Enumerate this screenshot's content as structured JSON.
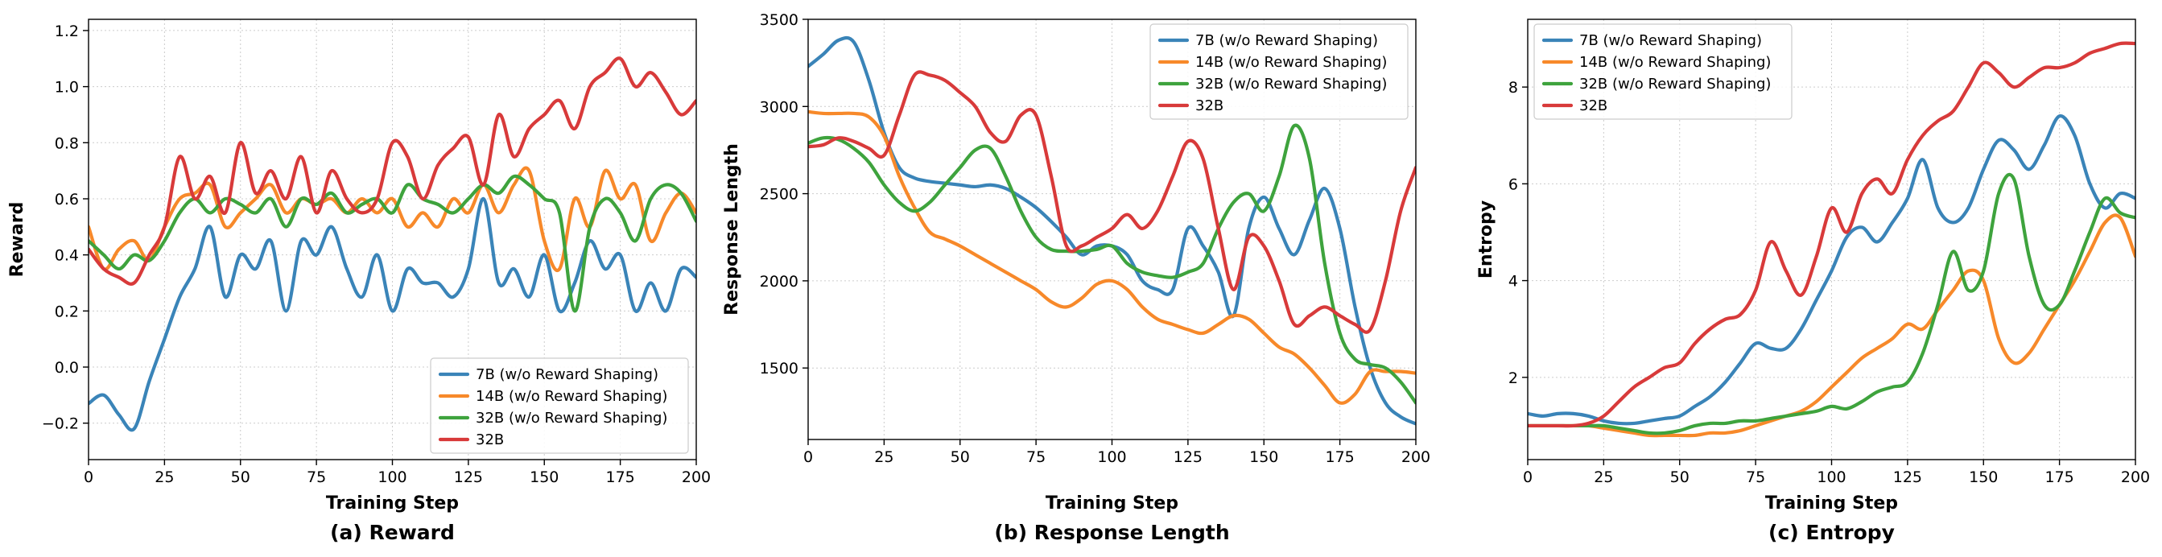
{
  "figure": {
    "background": "#ffffff"
  },
  "legend": {
    "entries": [
      {
        "label": "7B (w/o Reward Shaping)",
        "color": "#3a84b8"
      },
      {
        "label": "14B (w/o Reward Shaping)",
        "color": "#f7892a"
      },
      {
        "label": "32B (w/o Reward Shaping)",
        "color": "#3ea33d"
      },
      {
        "label": "32B",
        "color": "#d83a3a"
      }
    ]
  },
  "chart_data": [
    {
      "type": "line",
      "caption": "(a) Reward",
      "xlabel": "Training Step",
      "ylabel": "Reward",
      "xlim": [
        0,
        200
      ],
      "ylim": [
        -0.33,
        1.24
      ],
      "xticks": [
        0,
        25,
        50,
        75,
        100,
        125,
        150,
        175,
        200
      ],
      "xtick_labels": [
        "0",
        "25",
        "50",
        "75",
        "100",
        "125",
        "150",
        "175",
        "200"
      ],
      "yticks": [
        -0.2,
        0.0,
        0.2,
        0.4,
        0.6,
        0.8,
        1.0,
        1.2
      ],
      "ytick_labels": [
        "−0.2",
        "0.0",
        "0.2",
        "0.4",
        "0.6",
        "0.8",
        "1.0",
        "1.2"
      ],
      "grid": true,
      "legend_position": "lower-right",
      "x": [
        0,
        5,
        10,
        15,
        20,
        25,
        30,
        35,
        40,
        45,
        50,
        55,
        60,
        65,
        70,
        75,
        80,
        85,
        90,
        95,
        100,
        105,
        110,
        115,
        120,
        125,
        130,
        135,
        140,
        145,
        150,
        155,
        160,
        165,
        170,
        175,
        180,
        185,
        190,
        195,
        200
      ],
      "series": [
        {
          "name": "7B (w/o Reward Shaping)",
          "color": "#3a84b8",
          "values": [
            -0.13,
            -0.1,
            -0.17,
            -0.22,
            -0.05,
            0.1,
            0.25,
            0.35,
            0.5,
            0.25,
            0.4,
            0.35,
            0.45,
            0.2,
            0.45,
            0.4,
            0.5,
            0.35,
            0.25,
            0.4,
            0.2,
            0.35,
            0.3,
            0.3,
            0.25,
            0.35,
            0.6,
            0.3,
            0.35,
            0.25,
            0.4,
            0.2,
            0.3,
            0.45,
            0.35,
            0.4,
            0.2,
            0.3,
            0.2,
            0.35,
            0.32
          ]
        },
        {
          "name": "14B (w/o Reward Shaping)",
          "color": "#f7892a",
          "values": [
            0.5,
            0.35,
            0.42,
            0.45,
            0.38,
            0.5,
            0.6,
            0.62,
            0.65,
            0.5,
            0.55,
            0.6,
            0.65,
            0.55,
            0.6,
            0.58,
            0.6,
            0.55,
            0.6,
            0.55,
            0.6,
            0.5,
            0.55,
            0.5,
            0.6,
            0.55,
            0.65,
            0.55,
            0.65,
            0.7,
            0.45,
            0.35,
            0.6,
            0.5,
            0.7,
            0.6,
            0.65,
            0.45,
            0.55,
            0.62,
            0.55
          ]
        },
        {
          "name": "32B (w/o Reward Shaping)",
          "color": "#3ea33d",
          "values": [
            0.45,
            0.4,
            0.35,
            0.4,
            0.38,
            0.45,
            0.55,
            0.6,
            0.55,
            0.6,
            0.58,
            0.55,
            0.6,
            0.5,
            0.6,
            0.58,
            0.62,
            0.55,
            0.58,
            0.6,
            0.55,
            0.65,
            0.6,
            0.58,
            0.55,
            0.6,
            0.65,
            0.62,
            0.68,
            0.65,
            0.6,
            0.55,
            0.2,
            0.5,
            0.6,
            0.55,
            0.45,
            0.6,
            0.65,
            0.62,
            0.52
          ]
        },
        {
          "name": "32B",
          "color": "#d83a3a",
          "values": [
            0.42,
            0.35,
            0.32,
            0.3,
            0.4,
            0.5,
            0.75,
            0.6,
            0.68,
            0.55,
            0.8,
            0.62,
            0.7,
            0.6,
            0.75,
            0.55,
            0.7,
            0.6,
            0.55,
            0.6,
            0.8,
            0.75,
            0.6,
            0.72,
            0.78,
            0.82,
            0.65,
            0.9,
            0.75,
            0.85,
            0.9,
            0.95,
            0.85,
            1.0,
            1.05,
            1.1,
            1.0,
            1.05,
            0.98,
            0.9,
            0.95
          ]
        }
      ]
    },
    {
      "type": "line",
      "caption": "(b) Response Length",
      "xlabel": "Training Step",
      "ylabel": "Response Length",
      "xlim": [
        0,
        200
      ],
      "ylim": [
        1090,
        3500
      ],
      "xticks": [
        0,
        25,
        50,
        75,
        100,
        125,
        150,
        175,
        200
      ],
      "xtick_labels": [
        "0",
        "25",
        "50",
        "75",
        "100",
        "125",
        "150",
        "175",
        "200"
      ],
      "yticks": [
        1500,
        2000,
        2500,
        3000,
        3500
      ],
      "ytick_labels": [
        "1500",
        "2000",
        "2500",
        "3000",
        "3500"
      ],
      "grid": true,
      "legend_position": "top-right",
      "x": [
        0,
        5,
        10,
        15,
        20,
        25,
        30,
        35,
        40,
        45,
        50,
        55,
        60,
        65,
        70,
        75,
        80,
        85,
        90,
        95,
        100,
        105,
        110,
        115,
        120,
        125,
        130,
        135,
        140,
        145,
        150,
        155,
        160,
        165,
        170,
        175,
        180,
        185,
        190,
        195,
        200
      ],
      "series": [
        {
          "name": "7B (w/o Reward Shaping)",
          "color": "#3a84b8",
          "values": [
            3230,
            3300,
            3380,
            3370,
            3150,
            2850,
            2650,
            2590,
            2570,
            2560,
            2550,
            2540,
            2550,
            2530,
            2480,
            2420,
            2340,
            2250,
            2150,
            2200,
            2200,
            2150,
            2000,
            1950,
            1950,
            2300,
            2200,
            2050,
            1800,
            2300,
            2480,
            2300,
            2150,
            2350,
            2530,
            2300,
            1850,
            1500,
            1300,
            1220,
            1180
          ]
        },
        {
          "name": "14B (w/o Reward Shaping)",
          "color": "#f7892a",
          "values": [
            2970,
            2960,
            2960,
            2960,
            2940,
            2830,
            2600,
            2420,
            2280,
            2240,
            2200,
            2150,
            2100,
            2050,
            2000,
            1950,
            1880,
            1850,
            1900,
            1980,
            2000,
            1950,
            1850,
            1780,
            1750,
            1720,
            1700,
            1750,
            1800,
            1780,
            1700,
            1620,
            1580,
            1500,
            1400,
            1300,
            1350,
            1480,
            1480,
            1480,
            1470
          ]
        },
        {
          "name": "32B (w/o Reward Shaping)",
          "color": "#3ea33d",
          "values": [
            2790,
            2820,
            2810,
            2760,
            2680,
            2550,
            2450,
            2400,
            2450,
            2550,
            2650,
            2750,
            2760,
            2600,
            2400,
            2250,
            2180,
            2170,
            2170,
            2180,
            2200,
            2100,
            2050,
            2030,
            2020,
            2050,
            2100,
            2300,
            2450,
            2500,
            2400,
            2600,
            2890,
            2700,
            2100,
            1700,
            1550,
            1520,
            1500,
            1420,
            1300
          ]
        },
        {
          "name": "32B",
          "color": "#d83a3a",
          "values": [
            2770,
            2780,
            2820,
            2800,
            2760,
            2720,
            2950,
            3180,
            3180,
            3150,
            3080,
            3000,
            2850,
            2800,
            2950,
            2950,
            2600,
            2200,
            2200,
            2250,
            2300,
            2380,
            2300,
            2400,
            2600,
            2800,
            2700,
            2300,
            1950,
            2250,
            2200,
            2000,
            1750,
            1800,
            1850,
            1800,
            1750,
            1720,
            2000,
            2400,
            2650
          ]
        }
      ]
    },
    {
      "type": "line",
      "caption": "(c) Entropy",
      "xlabel": "Training Step",
      "ylabel": "Entropy",
      "xlim": [
        0,
        200
      ],
      "ylim": [
        0.3,
        9.4
      ],
      "xticks": [
        0,
        25,
        50,
        75,
        100,
        125,
        150,
        175,
        200
      ],
      "xtick_labels": [
        "0",
        "25",
        "50",
        "75",
        "100",
        "125",
        "150",
        "175",
        "200"
      ],
      "yticks": [
        2,
        4,
        6,
        8
      ],
      "ytick_labels": [
        "2",
        "4",
        "6",
        "8"
      ],
      "grid": true,
      "legend_position": "top-left",
      "x": [
        0,
        5,
        10,
        15,
        20,
        25,
        30,
        35,
        40,
        45,
        50,
        55,
        60,
        65,
        70,
        75,
        80,
        85,
        90,
        95,
        100,
        105,
        110,
        115,
        120,
        125,
        130,
        135,
        140,
        145,
        150,
        155,
        160,
        165,
        170,
        175,
        180,
        185,
        190,
        195,
        200
      ],
      "series": [
        {
          "name": "7B (w/o Reward Shaping)",
          "color": "#3a84b8",
          "values": [
            1.25,
            1.2,
            1.25,
            1.25,
            1.2,
            1.1,
            1.05,
            1.05,
            1.1,
            1.15,
            1.2,
            1.4,
            1.6,
            1.9,
            2.3,
            2.7,
            2.6,
            2.6,
            3.0,
            3.6,
            4.2,
            4.9,
            5.1,
            4.8,
            5.2,
            5.7,
            6.5,
            5.5,
            5.2,
            5.5,
            6.3,
            6.9,
            6.7,
            6.3,
            6.8,
            7.4,
            7.0,
            6.0,
            5.5,
            5.8,
            5.7
          ]
        },
        {
          "name": "14B (w/o Reward Shaping)",
          "color": "#f7892a",
          "values": [
            1.0,
            1.0,
            1.0,
            1.0,
            1.0,
            0.95,
            0.9,
            0.85,
            0.8,
            0.8,
            0.8,
            0.8,
            0.85,
            0.85,
            0.9,
            1.0,
            1.1,
            1.2,
            1.3,
            1.5,
            1.8,
            2.1,
            2.4,
            2.6,
            2.8,
            3.1,
            3.0,
            3.4,
            3.8,
            4.2,
            4.0,
            2.8,
            2.3,
            2.5,
            3.0,
            3.5,
            4.0,
            4.6,
            5.2,
            5.3,
            4.5
          ]
        },
        {
          "name": "32B (w/o Reward Shaping)",
          "color": "#3ea33d",
          "values": [
            1.0,
            1.0,
            1.0,
            1.0,
            1.0,
            1.0,
            0.95,
            0.9,
            0.85,
            0.85,
            0.9,
            1.0,
            1.05,
            1.05,
            1.1,
            1.1,
            1.15,
            1.2,
            1.25,
            1.3,
            1.4,
            1.35,
            1.5,
            1.7,
            1.8,
            1.9,
            2.5,
            3.5,
            4.6,
            3.8,
            4.2,
            5.8,
            6.1,
            4.5,
            3.5,
            3.5,
            4.2,
            5.0,
            5.7,
            5.4,
            5.3
          ]
        },
        {
          "name": "32B",
          "color": "#d83a3a",
          "values": [
            1.0,
            1.0,
            1.0,
            1.0,
            1.05,
            1.2,
            1.5,
            1.8,
            2.0,
            2.2,
            2.3,
            2.7,
            3.0,
            3.2,
            3.3,
            3.8,
            4.8,
            4.2,
            3.7,
            4.5,
            5.5,
            5.0,
            5.8,
            6.1,
            5.8,
            6.5,
            7.0,
            7.3,
            7.5,
            8.0,
            8.5,
            8.3,
            8.0,
            8.2,
            8.4,
            8.4,
            8.5,
            8.7,
            8.8,
            8.9,
            8.9
          ]
        }
      ]
    }
  ]
}
